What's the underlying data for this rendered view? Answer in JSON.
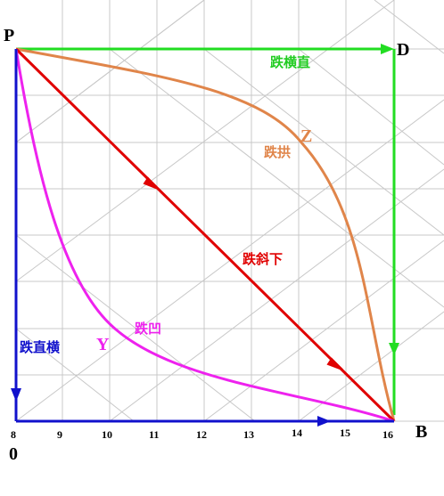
{
  "points": {
    "p": "P",
    "d": "D",
    "b": "B",
    "origin": "0"
  },
  "axis": {
    "ticks": [
      "8",
      "9",
      "10",
      "11",
      "12",
      "13",
      "14",
      "15",
      "16"
    ]
  },
  "paths": {
    "horizontal_then_vertical": {
      "label": "跌横直",
      "color": "#22dd22"
    },
    "convex": {
      "label": "跌拱",
      "marker": "Z",
      "color": "#e0854a"
    },
    "diagonal": {
      "label": "跌斜下",
      "color": "#e00000"
    },
    "concave": {
      "label": "跌凹",
      "marker": "Y",
      "color": "#ee22ee"
    },
    "vertical_then_horizontal": {
      "label": "跌直横",
      "color": "#1111cc"
    }
  },
  "colors": {
    "grid": "#c8c8c8"
  }
}
